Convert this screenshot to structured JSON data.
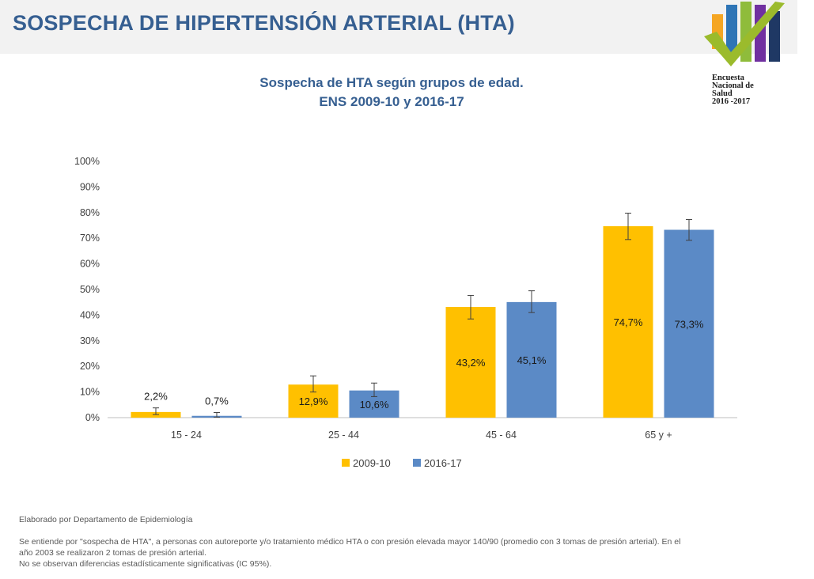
{
  "header": {
    "title": "SOSPECHA DE HIPERTENSIÓN ARTERIAL (HTA)"
  },
  "logo": {
    "name": "ens-logo",
    "lines": [
      "Encuesta",
      "Nacional de",
      "Salud",
      "2016 -2017"
    ],
    "colors": [
      "#f5a623",
      "#2e75b6",
      "#8fbc3b",
      "#7030a0",
      "#1f3864"
    ],
    "check_color": "#9bbb2c"
  },
  "chart_data": {
    "type": "bar",
    "title": "Sospecha de HTA según grupos de edad.",
    "subtitle": "ENS 2009-10 y 2016-17",
    "categories": [
      "15 - 24",
      "25 - 44",
      "45 - 64",
      "65 y +"
    ],
    "series": [
      {
        "name": "2009-10",
        "color": "#ffc000",
        "values": [
          2.2,
          12.9,
          43.2,
          74.7
        ],
        "labels": [
          "2,2%",
          "12,9%",
          "43,2%",
          "74,7%"
        ],
        "ci_low": [
          1.2,
          10.0,
          38.5,
          69.5
        ],
        "ci_high": [
          3.8,
          16.3,
          47.7,
          79.8
        ]
      },
      {
        "name": "2016-17",
        "color": "#5b8ac6",
        "values": [
          0.7,
          10.6,
          45.1,
          73.3
        ],
        "labels": [
          "0,7%",
          "10,6%",
          "45,1%",
          "73,3%"
        ],
        "ci_low": [
          0.2,
          8.2,
          41.0,
          69.2
        ],
        "ci_high": [
          2.0,
          13.5,
          49.5,
          77.3
        ]
      }
    ],
    "yticks": [
      "0%",
      "10%",
      "20%",
      "30%",
      "40%",
      "50%",
      "60%",
      "70%",
      "80%",
      "90%",
      "100%"
    ],
    "ylim": [
      0,
      100
    ],
    "grid": false,
    "legend_position": "bottom"
  },
  "footer": {
    "credit": "Elaborado por Departamento de Epidemiología",
    "notes": [
      "Se entiende por \"sospecha de HTA\", a personas con autoreporte y/o tratamiento médico HTA o con presión elevada mayor 140/90 (promedio con 3 tomas de presión arterial). En el",
      "año 2003 se realizaron 2 tomas de presión arterial.",
      "No se observan diferencias estadísticamente significativas (IC 95%)."
    ]
  }
}
